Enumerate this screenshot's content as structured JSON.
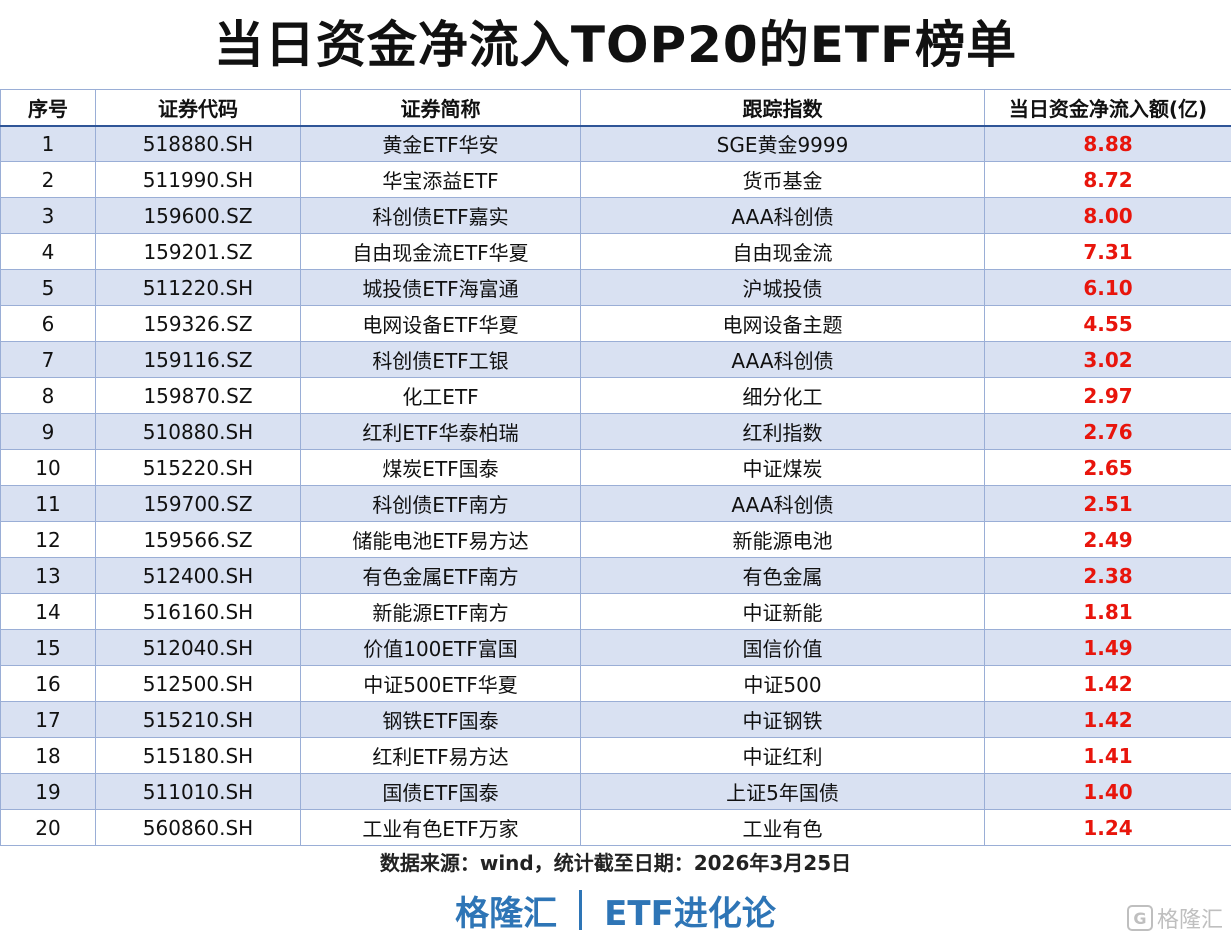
{
  "title": "当日资金净流入TOP20的ETF榜单",
  "table": {
    "headers": [
      "序号",
      "证券代码",
      "证券简称",
      "跟踪指数",
      "当日资金净流入额(亿)"
    ],
    "rows": [
      [
        "1",
        "518880.SH",
        "黄金ETF华安",
        "SGE黄金9999",
        "8.88"
      ],
      [
        "2",
        "511990.SH",
        "华宝添益ETF",
        "货币基金",
        "8.72"
      ],
      [
        "3",
        "159600.SZ",
        "科创债ETF嘉实",
        "AAA科创债",
        "8.00"
      ],
      [
        "4",
        "159201.SZ",
        "自由现金流ETF华夏",
        "自由现金流",
        "7.31"
      ],
      [
        "5",
        "511220.SH",
        "城投债ETF海富通",
        "沪城投债",
        "6.10"
      ],
      [
        "6",
        "159326.SZ",
        "电网设备ETF华夏",
        "电网设备主题",
        "4.55"
      ],
      [
        "7",
        "159116.SZ",
        "科创债ETF工银",
        "AAA科创债",
        "3.02"
      ],
      [
        "8",
        "159870.SZ",
        "化工ETF",
        "细分化工",
        "2.97"
      ],
      [
        "9",
        "510880.SH",
        "红利ETF华泰柏瑞",
        "红利指数",
        "2.76"
      ],
      [
        "10",
        "515220.SH",
        "煤炭ETF国泰",
        "中证煤炭",
        "2.65"
      ],
      [
        "11",
        "159700.SZ",
        "科创债ETF南方",
        "AAA科创债",
        "2.51"
      ],
      [
        "12",
        "159566.SZ",
        "储能电池ETF易方达",
        "新能源电池",
        "2.49"
      ],
      [
        "13",
        "512400.SH",
        "有色金属ETF南方",
        "有色金属",
        "2.38"
      ],
      [
        "14",
        "516160.SH",
        "新能源ETF南方",
        "中证新能",
        "1.81"
      ],
      [
        "15",
        "512040.SH",
        "价值100ETF富国",
        "国信价值",
        "1.49"
      ],
      [
        "16",
        "512500.SH",
        "中证500ETF华夏",
        "中证500",
        "1.42"
      ],
      [
        "17",
        "515210.SH",
        "钢铁ETF国泰",
        "中证钢铁",
        "1.42"
      ],
      [
        "18",
        "515180.SH",
        "红利ETF易方达",
        "中证红利",
        "1.41"
      ],
      [
        "19",
        "511010.SH",
        "国债ETF国泰",
        "上证5年国债",
        "1.40"
      ],
      [
        "20",
        "560860.SH",
        "工业有色ETF万家",
        "工业有色",
        "1.24"
      ]
    ]
  },
  "source": "数据来源：wind，统计截至日期：2026年3月25日",
  "brand": {
    "left": "格隆汇",
    "right": "ETF进化论"
  },
  "watermark": {
    "logo": "G",
    "text": "格隆汇"
  },
  "colors": {
    "header_rule": "#2f5597",
    "band": "#d9e1f2",
    "amount": "#e8150c",
    "brand": "#2e75b6"
  }
}
